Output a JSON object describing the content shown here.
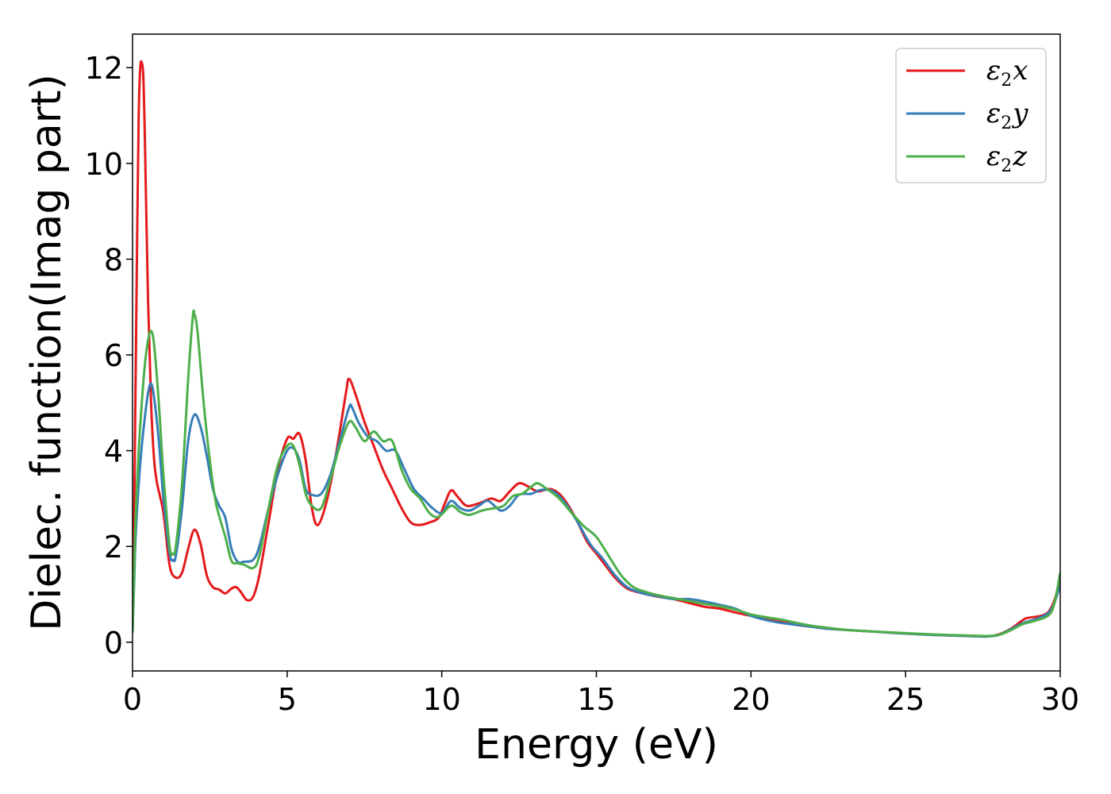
{
  "chart_data": {
    "type": "line",
    "xlabel": "Energy (eV)",
    "ylabel": "Dielec. function(Imag part)",
    "xlim": [
      0,
      30
    ],
    "ylim": [
      -0.6,
      12.7
    ],
    "xticks": [
      "0",
      "5",
      "10",
      "15",
      "20",
      "25",
      "30"
    ],
    "yticks": [
      "0",
      "2",
      "4",
      "6",
      "8",
      "10",
      "12"
    ],
    "grid": false,
    "legend_position": "top-right",
    "series": [
      {
        "name": "ε2x",
        "legend_main": "ε",
        "legend_sub": "2",
        "legend_suffix": "x",
        "color": "#e41a1c",
        "points": [
          [
            0,
            0.2
          ],
          [
            0.05,
            2.5
          ],
          [
            0.1,
            5.5
          ],
          [
            0.15,
            8.5
          ],
          [
            0.2,
            11
          ],
          [
            0.25,
            12
          ],
          [
            0.3,
            12.1
          ],
          [
            0.35,
            11.8
          ],
          [
            0.4,
            10.5
          ],
          [
            0.5,
            7.2
          ],
          [
            0.6,
            5
          ],
          [
            0.7,
            3.8
          ],
          [
            0.8,
            3.3
          ],
          [
            1,
            2.7
          ],
          [
            1.2,
            1.6
          ],
          [
            1.4,
            1.35
          ],
          [
            1.6,
            1.45
          ],
          [
            1.8,
            1.95
          ],
          [
            2,
            2.35
          ],
          [
            2.2,
            2.05
          ],
          [
            2.4,
            1.4
          ],
          [
            2.6,
            1.15
          ],
          [
            2.8,
            1.1
          ],
          [
            3,
            1.02
          ],
          [
            3.2,
            1.12
          ],
          [
            3.35,
            1.15
          ],
          [
            3.5,
            1.05
          ],
          [
            3.7,
            0.88
          ],
          [
            3.9,
            0.95
          ],
          [
            4.1,
            1.4
          ],
          [
            4.4,
            2.5
          ],
          [
            4.7,
            3.6
          ],
          [
            5,
            4.25
          ],
          [
            5.2,
            4.25
          ],
          [
            5.4,
            4.35
          ],
          [
            5.6,
            3.8
          ],
          [
            5.8,
            2.8
          ],
          [
            6,
            2.45
          ],
          [
            6.3,
            3
          ],
          [
            6.6,
            4
          ],
          [
            6.9,
            5.2
          ],
          [
            7,
            5.5
          ],
          [
            7.2,
            5.2
          ],
          [
            7.5,
            4.6
          ],
          [
            7.8,
            4.1
          ],
          [
            8.1,
            3.6
          ],
          [
            8.4,
            3.2
          ],
          [
            8.7,
            2.8
          ],
          [
            9,
            2.5
          ],
          [
            9.3,
            2.45
          ],
          [
            9.6,
            2.5
          ],
          [
            9.9,
            2.6
          ],
          [
            10.1,
            2.9
          ],
          [
            10.3,
            3.17
          ],
          [
            10.5,
            3.05
          ],
          [
            10.8,
            2.85
          ],
          [
            11.2,
            2.9
          ],
          [
            11.6,
            3
          ],
          [
            11.9,
            2.95
          ],
          [
            12.2,
            3.15
          ],
          [
            12.5,
            3.32
          ],
          [
            12.8,
            3.25
          ],
          [
            13.1,
            3.15
          ],
          [
            13.5,
            3.2
          ],
          [
            13.8,
            3.1
          ],
          [
            14.1,
            2.85
          ],
          [
            14.4,
            2.5
          ],
          [
            14.7,
            2.1
          ],
          [
            15,
            1.85
          ],
          [
            15.3,
            1.6
          ],
          [
            15.6,
            1.35
          ],
          [
            16,
            1.12
          ],
          [
            16.5,
            1.02
          ],
          [
            17,
            0.95
          ],
          [
            17.5,
            0.9
          ],
          [
            18,
            0.82
          ],
          [
            18.5,
            0.74
          ],
          [
            19,
            0.7
          ],
          [
            19.5,
            0.62
          ],
          [
            20,
            0.55
          ],
          [
            20.5,
            0.48
          ],
          [
            21,
            0.42
          ],
          [
            21.5,
            0.36
          ],
          [
            22,
            0.32
          ],
          [
            22.5,
            0.28
          ],
          [
            23,
            0.26
          ],
          [
            24,
            0.22
          ],
          [
            25,
            0.18
          ],
          [
            26,
            0.15
          ],
          [
            27,
            0.13
          ],
          [
            27.6,
            0.12
          ],
          [
            28,
            0.16
          ],
          [
            28.4,
            0.28
          ],
          [
            28.7,
            0.42
          ],
          [
            28.9,
            0.5
          ],
          [
            29.3,
            0.54
          ],
          [
            29.6,
            0.62
          ],
          [
            29.8,
            0.85
          ],
          [
            30,
            1.3
          ]
        ]
      },
      {
        "name": "ε2y",
        "legend_main": "ε",
        "legend_sub": "2",
        "legend_suffix": "y",
        "color": "#377eb8",
        "points": [
          [
            0,
            0.2
          ],
          [
            0.05,
            1.2
          ],
          [
            0.1,
            2.2
          ],
          [
            0.2,
            3.3
          ],
          [
            0.3,
            4.1
          ],
          [
            0.4,
            4.7
          ],
          [
            0.5,
            5.2
          ],
          [
            0.6,
            5.4
          ],
          [
            0.7,
            5.1
          ],
          [
            0.85,
            4.2
          ],
          [
            1,
            3
          ],
          [
            1.2,
            1.85
          ],
          [
            1.3,
            1.72
          ],
          [
            1.4,
            1.8
          ],
          [
            1.6,
            2.8
          ],
          [
            1.8,
            4.2
          ],
          [
            2,
            4.75
          ],
          [
            2.2,
            4.5
          ],
          [
            2.4,
            3.9
          ],
          [
            2.6,
            3.2
          ],
          [
            2.8,
            2.85
          ],
          [
            3,
            2.6
          ],
          [
            3.2,
            1.95
          ],
          [
            3.4,
            1.68
          ],
          [
            3.6,
            1.68
          ],
          [
            3.9,
            1.72
          ],
          [
            4.1,
            2
          ],
          [
            4.4,
            2.8
          ],
          [
            4.7,
            3.5
          ],
          [
            5,
            4
          ],
          [
            5.2,
            4.05
          ],
          [
            5.4,
            3.8
          ],
          [
            5.6,
            3.2
          ],
          [
            5.8,
            3.08
          ],
          [
            6.1,
            3.1
          ],
          [
            6.4,
            3.5
          ],
          [
            6.7,
            4.2
          ],
          [
            7,
            4.9
          ],
          [
            7.1,
            4.9
          ],
          [
            7.3,
            4.6
          ],
          [
            7.6,
            4.3
          ],
          [
            7.9,
            4.2
          ],
          [
            8.2,
            4
          ],
          [
            8.5,
            4
          ],
          [
            8.8,
            3.6
          ],
          [
            9.1,
            3.2
          ],
          [
            9.4,
            3
          ],
          [
            9.7,
            2.8
          ],
          [
            10,
            2.7
          ],
          [
            10.3,
            2.95
          ],
          [
            10.6,
            2.8
          ],
          [
            10.9,
            2.75
          ],
          [
            11.2,
            2.85
          ],
          [
            11.5,
            2.95
          ],
          [
            11.9,
            2.75
          ],
          [
            12.2,
            2.85
          ],
          [
            12.5,
            3.08
          ],
          [
            12.9,
            3.1
          ],
          [
            13.2,
            3.18
          ],
          [
            13.6,
            3.15
          ],
          [
            14,
            2.9
          ],
          [
            14.4,
            2.5
          ],
          [
            14.8,
            2.05
          ],
          [
            15.2,
            1.75
          ],
          [
            15.6,
            1.4
          ],
          [
            16,
            1.15
          ],
          [
            16.5,
            1.02
          ],
          [
            17,
            0.96
          ],
          [
            17.5,
            0.9
          ],
          [
            18,
            0.9
          ],
          [
            18.5,
            0.85
          ],
          [
            19,
            0.78
          ],
          [
            19.5,
            0.7
          ],
          [
            20,
            0.55
          ],
          [
            20.5,
            0.46
          ],
          [
            21,
            0.4
          ],
          [
            21.5,
            0.36
          ],
          [
            22,
            0.32
          ],
          [
            22.5,
            0.28
          ],
          [
            23,
            0.26
          ],
          [
            24,
            0.22
          ],
          [
            25,
            0.18
          ],
          [
            26,
            0.15
          ],
          [
            27,
            0.13
          ],
          [
            27.6,
            0.12
          ],
          [
            28,
            0.15
          ],
          [
            28.4,
            0.27
          ],
          [
            28.8,
            0.4
          ],
          [
            29.2,
            0.48
          ],
          [
            29.6,
            0.6
          ],
          [
            29.8,
            0.8
          ],
          [
            30,
            1.2
          ]
        ]
      },
      {
        "name": "ε2z",
        "legend_main": "ε",
        "legend_sub": "2",
        "legend_suffix": "z",
        "color": "#4daf4a",
        "points": [
          [
            0,
            0.2
          ],
          [
            0.05,
            1.4
          ],
          [
            0.1,
            2.6
          ],
          [
            0.2,
            4
          ],
          [
            0.3,
            5
          ],
          [
            0.4,
            5.8
          ],
          [
            0.5,
            6.3
          ],
          [
            0.6,
            6.5
          ],
          [
            0.7,
            6.2
          ],
          [
            0.85,
            5
          ],
          [
            1,
            3.5
          ],
          [
            1.2,
            2
          ],
          [
            1.3,
            1.85
          ],
          [
            1.4,
            2
          ],
          [
            1.6,
            3.3
          ],
          [
            1.8,
            5.5
          ],
          [
            1.95,
            6.8
          ],
          [
            2,
            6.85
          ],
          [
            2.1,
            6.5
          ],
          [
            2.3,
            5
          ],
          [
            2.5,
            3.8
          ],
          [
            2.7,
            2.9
          ],
          [
            3,
            2.2
          ],
          [
            3.2,
            1.7
          ],
          [
            3.4,
            1.65
          ],
          [
            3.6,
            1.62
          ],
          [
            3.9,
            1.55
          ],
          [
            4.1,
            1.8
          ],
          [
            4.4,
            2.8
          ],
          [
            4.7,
            3.7
          ],
          [
            5,
            4.1
          ],
          [
            5.2,
            4.1
          ],
          [
            5.4,
            3.7
          ],
          [
            5.6,
            3.1
          ],
          [
            5.8,
            2.85
          ],
          [
            6.1,
            2.8
          ],
          [
            6.4,
            3.4
          ],
          [
            6.7,
            4.1
          ],
          [
            7,
            4.6
          ],
          [
            7.2,
            4.5
          ],
          [
            7.5,
            4.2
          ],
          [
            7.8,
            4.4
          ],
          [
            8.1,
            4.2
          ],
          [
            8.4,
            4.2
          ],
          [
            8.7,
            3.6
          ],
          [
            9,
            3.2
          ],
          [
            9.3,
            3
          ],
          [
            9.6,
            2.7
          ],
          [
            9.9,
            2.62
          ],
          [
            10.3,
            2.85
          ],
          [
            10.6,
            2.72
          ],
          [
            10.9,
            2.66
          ],
          [
            11.3,
            2.75
          ],
          [
            11.7,
            2.8
          ],
          [
            12,
            2.85
          ],
          [
            12.3,
            3.05
          ],
          [
            12.6,
            3.1
          ],
          [
            12.9,
            3.25
          ],
          [
            13.1,
            3.32
          ],
          [
            13.4,
            3.2
          ],
          [
            13.8,
            3
          ],
          [
            14.2,
            2.7
          ],
          [
            14.6,
            2.42
          ],
          [
            15,
            2.2
          ],
          [
            15.4,
            1.8
          ],
          [
            15.8,
            1.4
          ],
          [
            16.2,
            1.15
          ],
          [
            16.6,
            1.05
          ],
          [
            17,
            0.98
          ],
          [
            17.5,
            0.92
          ],
          [
            18,
            0.86
          ],
          [
            18.5,
            0.8
          ],
          [
            19,
            0.75
          ],
          [
            19.5,
            0.68
          ],
          [
            20,
            0.58
          ],
          [
            20.5,
            0.52
          ],
          [
            21,
            0.47
          ],
          [
            21.5,
            0.4
          ],
          [
            22,
            0.34
          ],
          [
            22.5,
            0.3
          ],
          [
            23,
            0.26
          ],
          [
            24,
            0.22
          ],
          [
            25,
            0.19
          ],
          [
            26,
            0.16
          ],
          [
            27,
            0.14
          ],
          [
            27.6,
            0.13
          ],
          [
            28,
            0.15
          ],
          [
            28.4,
            0.25
          ],
          [
            28.8,
            0.38
          ],
          [
            29.2,
            0.45
          ],
          [
            29.6,
            0.55
          ],
          [
            29.8,
            0.78
          ],
          [
            30,
            1.45
          ]
        ]
      }
    ]
  }
}
